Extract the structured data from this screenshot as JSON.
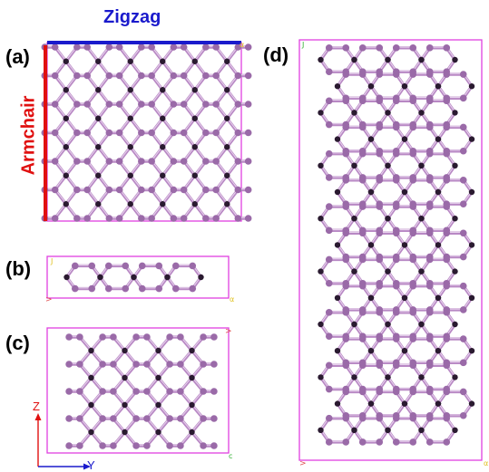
{
  "panels": {
    "a": {
      "label": "(a)"
    },
    "b": {
      "label": "(b)"
    },
    "c": {
      "label": "(c)"
    },
    "d": {
      "label": "(d)"
    }
  },
  "directions": {
    "zigzag": {
      "label": "Zigzag",
      "color": "#1a1acc"
    },
    "armchair": {
      "label": "Armchair",
      "color": "#e01010"
    }
  },
  "axes": {
    "z": {
      "label": "Z",
      "color": "#e01010"
    },
    "y": {
      "label": "Y",
      "color": "#1a1acc"
    }
  },
  "colors": {
    "cell_box": "#e040e0",
    "bond": "#b888c4",
    "atom": "#9a6aa8"
  }
}
